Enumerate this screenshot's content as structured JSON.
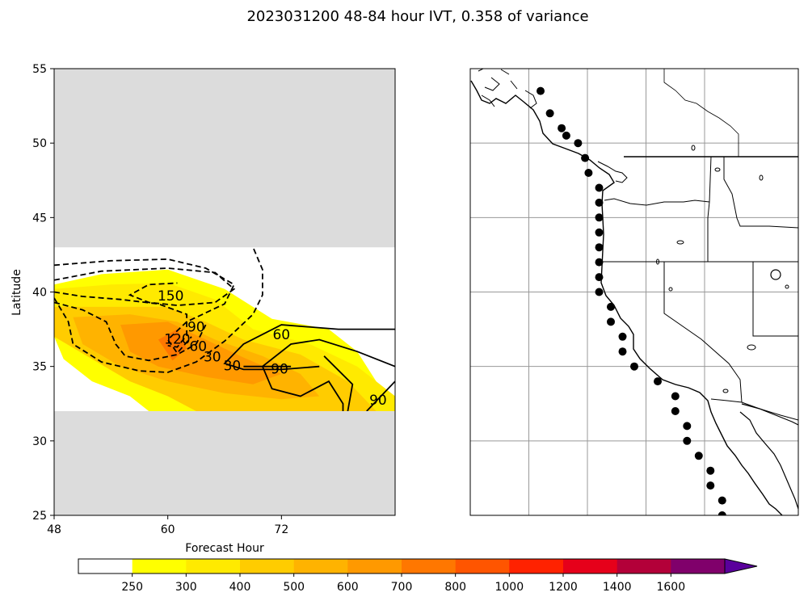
{
  "figure_title": "2023031200 48-84 hour IVT, 0.358 of variance",
  "chart_data": [
    {
      "type": "heatmap",
      "panel": "left",
      "xlabel": "Forecast Hour",
      "ylabel": "Latitude",
      "xlim": [
        48,
        84
      ],
      "ylim": [
        25,
        55
      ],
      "xticks": [
        48,
        60,
        72
      ],
      "yticks": [
        25,
        30,
        35,
        40,
        45,
        50,
        55
      ],
      "valid_lat_range": [
        32,
        43
      ],
      "masked_fill_color": "#dcdcdc",
      "filled_regions": [
        {
          "level": 250,
          "color": "#ffff00",
          "points": [
            [
              48,
              40.5
            ],
            [
              53,
              41.2
            ],
            [
              60,
              41.5
            ],
            [
              66,
              40.2
            ],
            [
              71,
              38.2
            ],
            [
              77,
              37.5
            ],
            [
              80,
              36
            ],
            [
              83,
              33
            ],
            [
              84,
              32
            ],
            [
              58,
              32
            ],
            [
              56,
              33
            ],
            [
              52,
              34
            ],
            [
              49,
              35.5
            ],
            [
              48,
              37
            ]
          ]
        },
        {
          "level": 300,
          "color": "#ffea00",
          "points": [
            [
              48,
              40.2
            ],
            [
              54,
              40.5
            ],
            [
              60,
              40.6
            ],
            [
              65,
              39.5
            ],
            [
              69,
              37.5
            ],
            [
              75,
              36.5
            ],
            [
              80,
              35
            ],
            [
              84,
              33
            ],
            [
              84,
              32
            ],
            [
              65,
              32
            ],
            [
              60,
              33
            ],
            [
              55,
              34.5
            ],
            [
              51,
              36
            ],
            [
              48,
              37.5
            ]
          ]
        },
        {
          "level": 400,
          "color": "#ffcc00",
          "points": [
            [
              48,
              39
            ],
            [
              54,
              39
            ],
            [
              60,
              39
            ],
            [
              64,
              38
            ],
            [
              68,
              36.8
            ],
            [
              74,
              35.8
            ],
            [
              79,
              34
            ],
            [
              82,
              32
            ],
            [
              63,
              32
            ],
            [
              60,
              33
            ],
            [
              56,
              34
            ],
            [
              52,
              35.5
            ],
            [
              48,
              37
            ]
          ]
        },
        {
          "level": 500,
          "color": "#ffb300",
          "points": [
            [
              50,
              38.3
            ],
            [
              56,
              38.5
            ],
            [
              61,
              38
            ],
            [
              65,
              36.8
            ],
            [
              70,
              35.7
            ],
            [
              74,
              34.5
            ],
            [
              76,
              33
            ],
            [
              72,
              32.8
            ],
            [
              66,
              33.2
            ],
            [
              60,
              34
            ],
            [
              55,
              35
            ],
            [
              51,
              36.5
            ]
          ]
        },
        {
          "level": 600,
          "color": "#ff9900",
          "points": [
            [
              55,
              37.8
            ],
            [
              60,
              38
            ],
            [
              64,
              36.8
            ],
            [
              68,
              35.6
            ],
            [
              72,
              34.5
            ],
            [
              69,
              33.8
            ],
            [
              64,
              34.3
            ],
            [
              59,
              35
            ],
            [
              56,
              36
            ]
          ]
        },
        {
          "level": 700,
          "color": "#ff7700",
          "points": [
            [
              59,
              36.8
            ],
            [
              61,
              37.5
            ],
            [
              62,
              36.2
            ],
            [
              60.5,
              35.4
            ]
          ]
        }
      ],
      "contours_positive": [
        {
          "label": "60",
          "points": [
            [
              84,
              37.5
            ],
            [
              78,
              37.5
            ],
            [
              72,
              37.8
            ],
            [
              68,
              36.5
            ],
            [
              66,
              35.2
            ],
            [
              68,
              34.8
            ],
            [
              72,
              34.8
            ],
            [
              76,
              35
            ]
          ]
        },
        {
          "label": "90",
          "points": [
            [
              68,
              35
            ],
            [
              72,
              35
            ],
            [
              73,
              35
            ]
          ]
        },
        {
          "label": "90",
          "points": [
            [
              84,
              35
            ],
            [
              80,
              36
            ],
            [
              76,
              36.8
            ],
            [
              73,
              36.5
            ],
            [
              70,
              35
            ],
            [
              71,
              33.5
            ],
            [
              74,
              33
            ],
            [
              77,
              34
            ],
            [
              78.5,
              32.5
            ],
            [
              78.5,
              32
            ]
          ]
        },
        {
          "label": "",
          "points": [
            [
              76.5,
              35.7
            ],
            [
              79.5,
              33.8
            ],
            [
              79,
              32
            ]
          ]
        },
        {
          "label": "90",
          "points": [
            [
              81,
              32
            ],
            [
              84,
              34
            ]
          ]
        }
      ],
      "contours_negative": [
        {
          "label": "150",
          "points": [
            [
              48,
              40.8
            ],
            [
              53,
              41.4
            ],
            [
              60,
              41.6
            ],
            [
              65,
              41.3
            ],
            [
              67,
              40.2
            ],
            [
              65,
              39.3
            ],
            [
              61,
              39.1
            ],
            [
              58,
              39.3
            ],
            [
              56,
              39.8
            ],
            [
              58,
              40.5
            ],
            [
              61,
              40.6
            ]
          ]
        },
        {
          "label": "120",
          "points": [
            [
              48,
              41.8
            ],
            [
              54,
              42.1
            ],
            [
              60,
              42.2
            ],
            [
              64,
              41.6
            ],
            [
              67,
              40.5
            ],
            [
              66,
              39.2
            ],
            [
              62,
              38
            ],
            [
              60,
              36.8
            ],
            [
              61,
              35.9
            ],
            [
              62.5,
              37
            ]
          ]
        },
        {
          "label": "90",
          "points": [
            [
              48,
              40
            ],
            [
              51,
              39.7
            ],
            [
              55,
              39.5
            ],
            [
              59,
              39.2
            ],
            [
              62,
              38.5
            ],
            [
              62,
              37.1
            ],
            [
              61,
              36.3
            ],
            [
              60,
              36.4
            ]
          ]
        },
        {
          "label": "60",
          "points": [
            [
              48,
              39.3
            ],
            [
              51,
              38.8
            ],
            [
              53.5,
              38
            ],
            [
              54.5,
              36.5
            ],
            [
              55.5,
              35.7
            ],
            [
              58,
              35.4
            ],
            [
              61,
              35.8
            ],
            [
              63,
              36.5
            ],
            [
              64,
              37.8
            ]
          ]
        },
        {
          "label": "30",
          "points": [
            [
              48,
              39.6
            ],
            [
              49.5,
              38
            ],
            [
              50,
              36.5
            ],
            [
              53,
              35.3
            ],
            [
              57,
              34.7
            ],
            [
              60,
              34.6
            ],
            [
              63,
              35.3
            ],
            [
              66,
              36.7
            ],
            [
              69,
              38.5
            ],
            [
              70,
              39.8
            ],
            [
              70,
              41.5
            ],
            [
              69,
              43
            ]
          ]
        }
      ],
      "contour_labels": [
        {
          "text": "150",
          "x": 60.3,
          "y": 39.7
        },
        {
          "text": "120",
          "x": 61.0,
          "y": 36.8
        },
        {
          "text": "90",
          "x": 63.0,
          "y": 37.6
        },
        {
          "text": "60",
          "x": 63.2,
          "y": 36.3
        },
        {
          "text": "30",
          "x": 64.7,
          "y": 35.6
        },
        {
          "text": "30",
          "x": 66.8,
          "y": 35.0
        },
        {
          "text": "60",
          "x": 72.0,
          "y": 37.1
        },
        {
          "text": "90",
          "x": 71.8,
          "y": 34.8
        },
        {
          "text": "90",
          "x": 82.2,
          "y": 32.7
        }
      ]
    },
    {
      "type": "map",
      "panel": "right",
      "region": "US West Coast",
      "grid": true,
      "lon_range": [
        -135,
        -107
      ],
      "lat_range": [
        25,
        55
      ],
      "gridline_lons": [
        -130,
        -125,
        -120,
        -115
      ],
      "gridline_lats": [
        30,
        35,
        40,
        45,
        50
      ],
      "points": [
        [
          -129.0,
          53.5
        ],
        [
          -128.2,
          52.0
        ],
        [
          -127.2,
          51.0
        ],
        [
          -126.8,
          50.5
        ],
        [
          -125.8,
          50.0
        ],
        [
          -125.2,
          49.0
        ],
        [
          -124.9,
          48.0
        ],
        [
          -124.0,
          47.0
        ],
        [
          -124.0,
          46.0
        ],
        [
          -124.0,
          45.0
        ],
        [
          -124.0,
          44.0
        ],
        [
          -124.0,
          43.0
        ],
        [
          -124.0,
          42.0
        ],
        [
          -124.0,
          41.0
        ],
        [
          -124.0,
          40.0
        ],
        [
          -123.0,
          39.0
        ],
        [
          -123.0,
          38.0
        ],
        [
          -122.0,
          37.0
        ],
        [
          -122.0,
          36.0
        ],
        [
          -121.0,
          35.0
        ],
        [
          -119.0,
          34.0
        ],
        [
          -117.5,
          33.0
        ],
        [
          -117.5,
          32.0
        ],
        [
          -116.5,
          31.0
        ],
        [
          -116.5,
          30.0
        ],
        [
          -115.5,
          29.0
        ],
        [
          -114.5,
          28.0
        ],
        [
          -114.5,
          27.0
        ],
        [
          -113.5,
          26.0
        ],
        [
          -113.5,
          25.0
        ]
      ]
    }
  ],
  "colorbar": {
    "tick_labels": [
      "250",
      "300",
      "400",
      "500",
      "600",
      "700",
      "800",
      "1000",
      "1200",
      "1400",
      "1600"
    ],
    "colors": [
      "#ffffff",
      "#ffff00",
      "#ffea00",
      "#ffcc00",
      "#ffb300",
      "#ff9900",
      "#ff7700",
      "#ff5500",
      "#ff2200",
      "#e6001a",
      "#b30039",
      "#80006b",
      "#5a009c"
    ],
    "extend": "max"
  }
}
